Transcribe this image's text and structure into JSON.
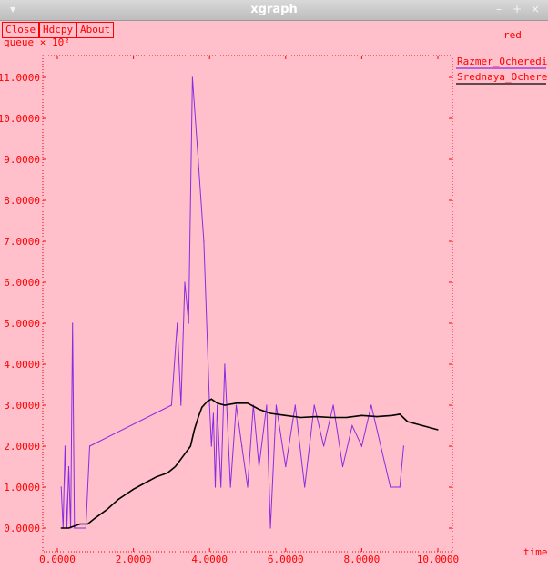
{
  "window": {
    "title": "xgraph"
  },
  "buttons": {
    "close": "Close",
    "hdcpy": "Hdcpy",
    "about": "About"
  },
  "header": {
    "mode": "red"
  },
  "colors": {
    "background": "#ffc0cb",
    "foreground": "#ff0000",
    "series1": "#8a2be2",
    "series2": "#000000"
  },
  "chart_data": {
    "type": "line",
    "ylabel": "queue × 10²",
    "xlabel": "time",
    "xlim": [
      0,
      10
    ],
    "ylim": [
      0,
      11
    ],
    "xticks": [
      "0.0000",
      "2.0000",
      "4.0000",
      "6.0000",
      "8.0000",
      "10.0000"
    ],
    "yticks": [
      "0.0000",
      "1.0000",
      "2.0000",
      "3.0000",
      "4.0000",
      "5.0000",
      "6.0000",
      "7.0000",
      "8.0000",
      "9.0000",
      "10.0000",
      "11.0000"
    ],
    "grid": false,
    "legend_position": "right",
    "series": [
      {
        "name": "Razmer_Ocheredi",
        "color": "#8a2be2",
        "x": [
          0.1,
          0.15,
          0.2,
          0.25,
          0.3,
          0.35,
          0.4,
          0.45,
          0.5,
          0.75,
          0.85,
          3.0,
          3.15,
          3.25,
          3.35,
          3.45,
          3.55,
          3.7,
          3.85,
          4.0,
          4.05,
          4.1,
          4.15,
          4.2,
          4.3,
          4.4,
          4.55,
          4.7,
          4.85,
          5.0,
          5.15,
          5.3,
          5.5,
          5.6,
          5.75,
          6.0,
          6.25,
          6.5,
          6.75,
          7.0,
          7.25,
          7.5,
          7.75,
          8.0,
          8.25,
          8.5,
          8.75,
          9.0,
          9.1
        ],
        "values": [
          1.0,
          0.0,
          2.0,
          0.0,
          1.5,
          0.0,
          5.0,
          0.0,
          0.0,
          0.0,
          2.0,
          3.0,
          5.0,
          3.0,
          6.0,
          5.0,
          11.0,
          9.0,
          7.0,
          3.0,
          2.0,
          2.8,
          1.0,
          3.0,
          1.0,
          4.0,
          1.0,
          3.0,
          2.0,
          1.0,
          3.0,
          1.5,
          3.0,
          0.0,
          3.0,
          1.5,
          3.0,
          1.0,
          3.0,
          2.0,
          3.0,
          1.5,
          2.5,
          2.0,
          3.0,
          2.0,
          1.0,
          1.0,
          2.0
        ]
      },
      {
        "name": "Srednaya_Ochered",
        "color": "#000000",
        "x": [
          0.1,
          0.3,
          0.45,
          0.6,
          0.8,
          1.0,
          1.3,
          1.6,
          2.0,
          2.3,
          2.6,
          2.9,
          3.1,
          3.3,
          3.5,
          3.6,
          3.7,
          3.8,
          3.95,
          4.05,
          4.2,
          4.4,
          4.7,
          5.0,
          5.3,
          5.6,
          6.0,
          6.4,
          6.8,
          7.2,
          7.6,
          8.0,
          8.4,
          8.8,
          9.0,
          9.2,
          9.6,
          10.0
        ],
        "values": [
          0.0,
          0.0,
          0.05,
          0.1,
          0.1,
          0.25,
          0.45,
          0.7,
          0.95,
          1.1,
          1.25,
          1.35,
          1.5,
          1.75,
          2.0,
          2.4,
          2.7,
          2.95,
          3.1,
          3.15,
          3.05,
          3.0,
          3.05,
          3.05,
          2.9,
          2.8,
          2.75,
          2.7,
          2.72,
          2.7,
          2.7,
          2.75,
          2.72,
          2.75,
          2.78,
          2.6,
          2.5,
          2.4
        ]
      }
    ]
  }
}
